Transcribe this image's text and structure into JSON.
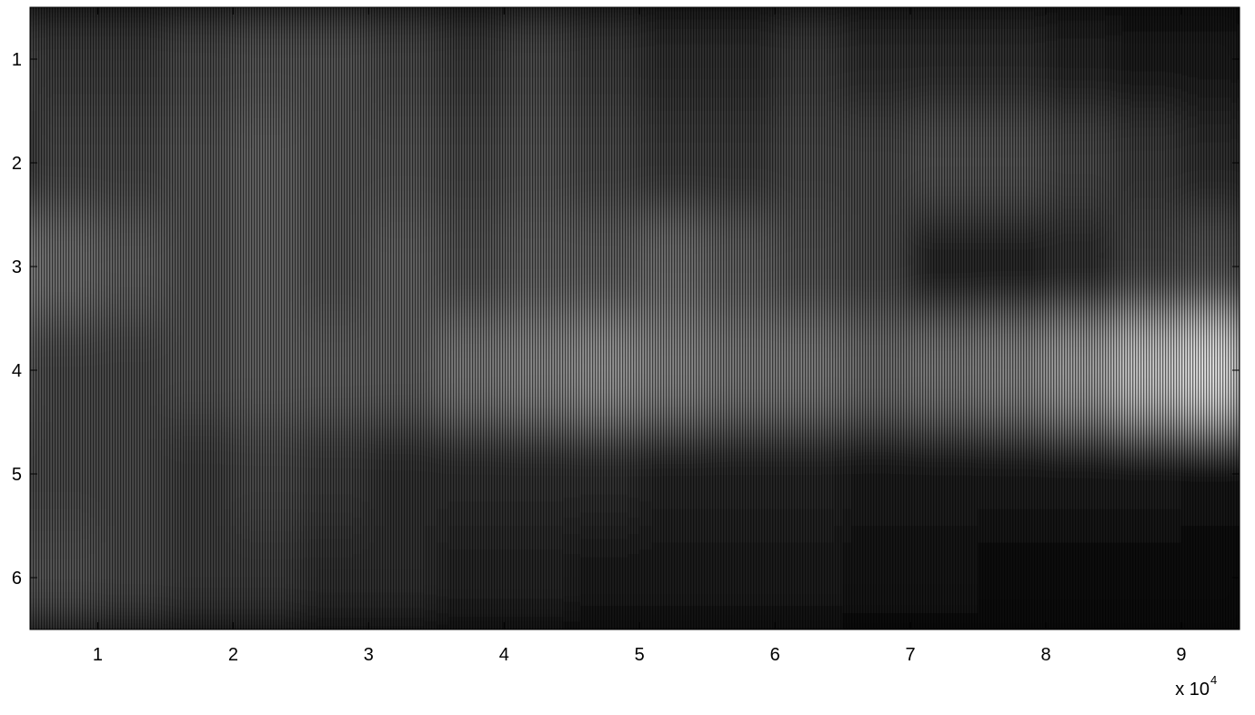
{
  "chart_data": {
    "type": "heatmap",
    "colormap": "gray",
    "x": [
      2500,
      7500,
      12500,
      17500,
      22500,
      27500,
      32500,
      37500,
      42500,
      47500,
      52500,
      57500,
      62500,
      67500,
      72500,
      77500,
      82500,
      87500,
      92500
    ],
    "y": [
      1,
      2,
      3,
      4,
      5,
      6
    ],
    "z": [
      [
        0.3,
        0.25,
        0.25,
        0.3,
        0.35,
        0.35,
        0.3,
        0.25,
        0.3,
        0.25,
        0.2,
        0.2,
        0.25,
        0.2,
        0.2,
        0.2,
        0.15,
        0.12,
        0.1
      ],
      [
        0.15,
        0.3,
        0.3,
        0.35,
        0.4,
        0.35,
        0.35,
        0.3,
        0.35,
        0.3,
        0.25,
        0.25,
        0.3,
        0.3,
        0.35,
        0.35,
        0.3,
        0.25,
        0.2
      ],
      [
        0.55,
        0.45,
        0.4,
        0.35,
        0.4,
        0.35,
        0.4,
        0.35,
        0.4,
        0.4,
        0.45,
        0.4,
        0.35,
        0.3,
        0.15,
        0.15,
        0.2,
        0.3,
        0.35
      ],
      [
        0.4,
        0.3,
        0.3,
        0.35,
        0.4,
        0.4,
        0.4,
        0.5,
        0.55,
        0.6,
        0.55,
        0.5,
        0.5,
        0.45,
        0.5,
        0.55,
        0.65,
        0.8,
        0.9
      ],
      [
        0.3,
        0.3,
        0.3,
        0.25,
        0.3,
        0.25,
        0.2,
        0.2,
        0.2,
        0.2,
        0.15,
        0.15,
        0.15,
        0.12,
        0.12,
        0.1,
        0.1,
        0.1,
        0.08
      ],
      [
        0.35,
        0.35,
        0.3,
        0.25,
        0.25,
        0.2,
        0.2,
        0.15,
        0.15,
        0.12,
        0.12,
        0.1,
        0.1,
        0.08,
        0.08,
        0.06,
        0.05,
        0.05,
        0.05
      ]
    ],
    "xlim": [
      5000,
      94300
    ],
    "ylim": [
      0.5,
      6.5
    ],
    "y_reversed": true,
    "xticks": [
      {
        "value": 10000,
        "label": "1"
      },
      {
        "value": 20000,
        "label": "2"
      },
      {
        "value": 30000,
        "label": "3"
      },
      {
        "value": 40000,
        "label": "4"
      },
      {
        "value": 50000,
        "label": "5"
      },
      {
        "value": 60000,
        "label": "6"
      },
      {
        "value": 70000,
        "label": "7"
      },
      {
        "value": 80000,
        "label": "8"
      },
      {
        "value": 90000,
        "label": "9"
      }
    ],
    "yticks": [
      1,
      2,
      3,
      4,
      5,
      6
    ],
    "x_multiplier": "x 10",
    "x_multiplier_exponent": "4"
  }
}
